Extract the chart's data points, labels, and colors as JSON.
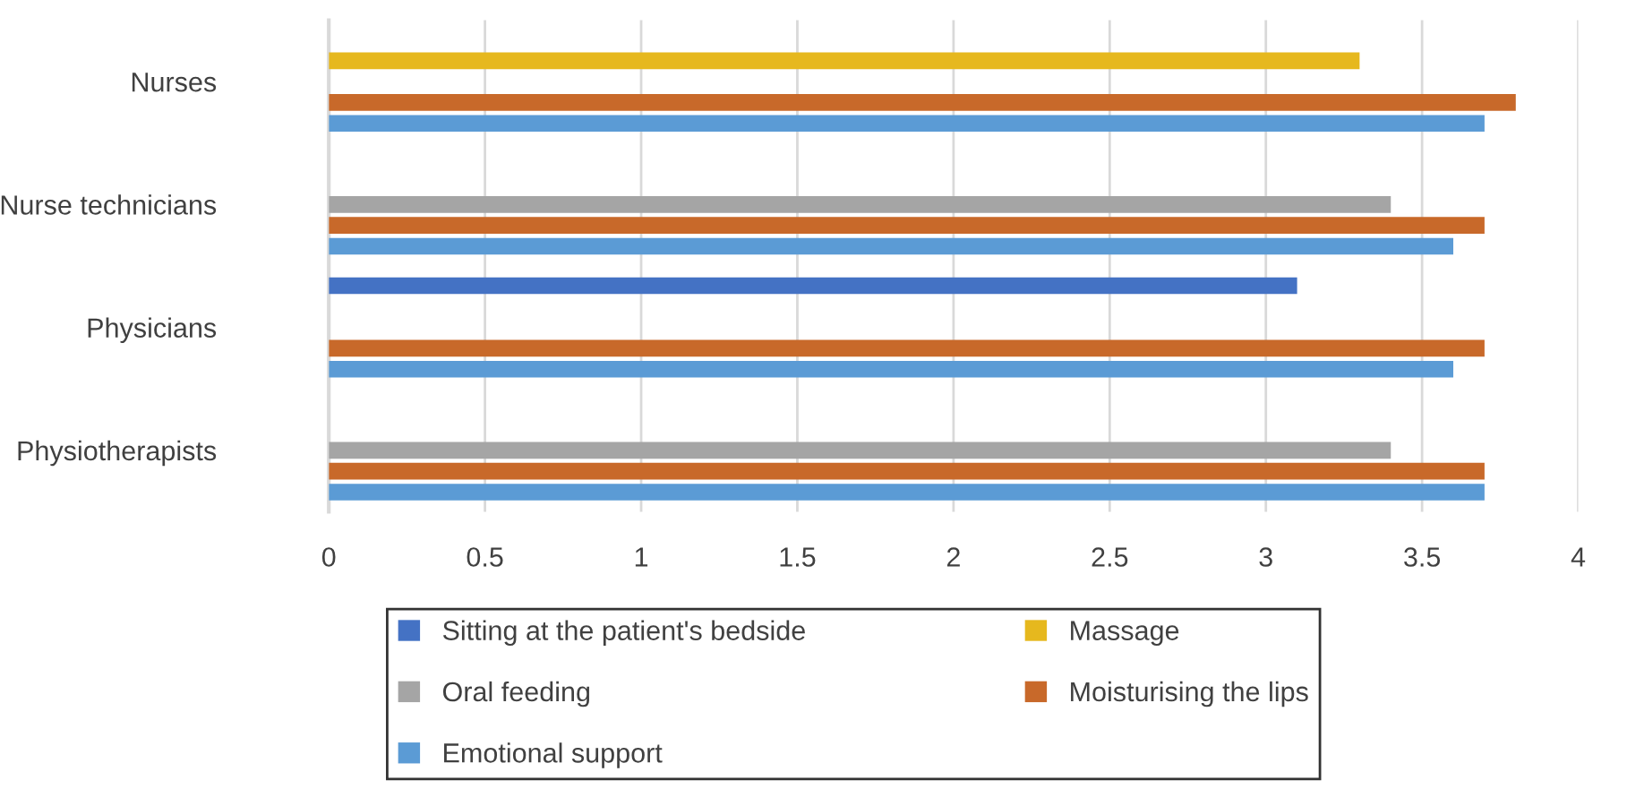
{
  "chart_data": {
    "type": "bar",
    "orientation": "horizontal",
    "categories": [
      "Nurses",
      "Nurse technicians",
      "Physicians",
      "Physiotherapists"
    ],
    "series": [
      {
        "name": "Sitting at the patient's bedside",
        "color": "#4472c4",
        "values": [
          null,
          null,
          3.1,
          null
        ]
      },
      {
        "name": "Massage",
        "color": "#e6b81e",
        "values": [
          3.3,
          null,
          null,
          null
        ]
      },
      {
        "name": "Oral feeding",
        "color": "#a5a5a5",
        "values": [
          null,
          3.4,
          null,
          3.4
        ]
      },
      {
        "name": "Moisturising the lips",
        "color": "#c8692a",
        "values": [
          3.8,
          3.7,
          3.7,
          3.7
        ]
      },
      {
        "name": "Emotional support",
        "color": "#5b9bd5",
        "values": [
          3.7,
          3.6,
          3.6,
          3.7
        ]
      }
    ],
    "xlim": [
      0,
      4
    ],
    "xticks": [
      0,
      0.5,
      1,
      1.5,
      2,
      2.5,
      3,
      3.5,
      4
    ],
    "grid": "x",
    "legend": "bottom"
  }
}
